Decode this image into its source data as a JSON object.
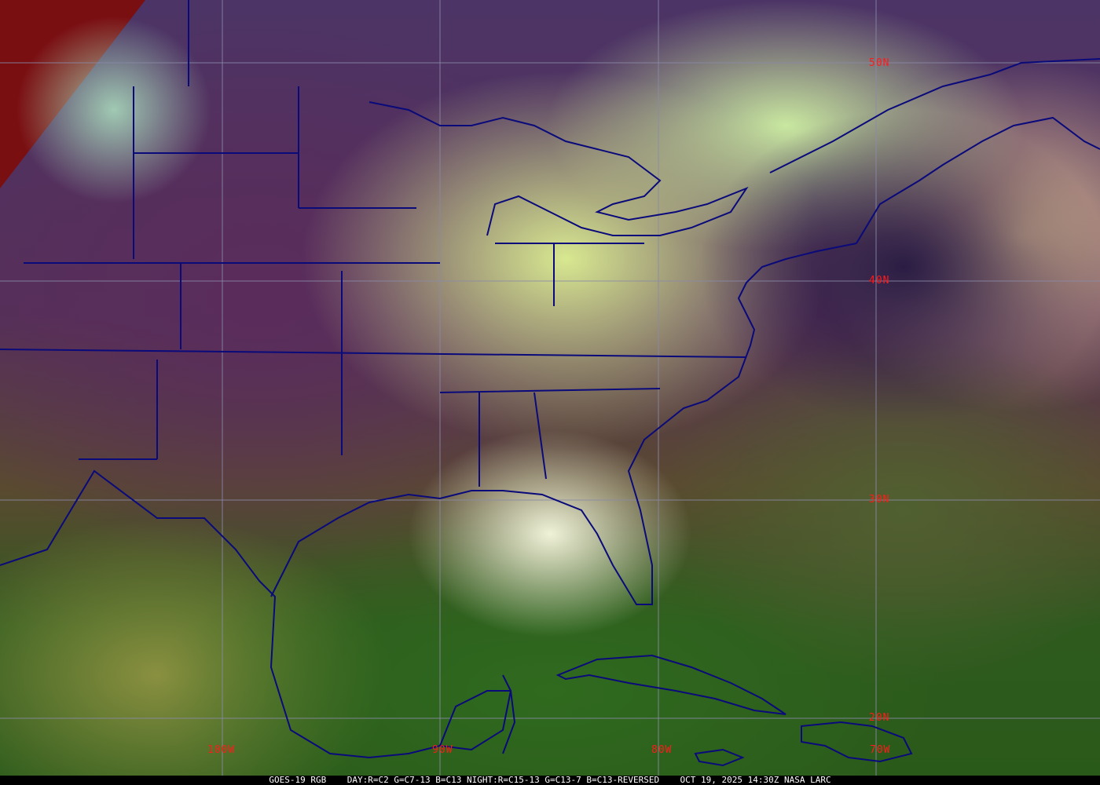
{
  "image": {
    "caption": "GOES-19 RGB    DAY:R=C2 G=C7-13 B=C13 NIGHT:R=C15-13 G=C13-7 B=C13-REVERSED    OCT 19, 2025 14:30Z NASA LARC",
    "latitude_labels": [
      "50N",
      "40N",
      "30N",
      "20N"
    ],
    "longitude_labels": [
      "100W",
      "90W",
      "80W",
      "70W"
    ],
    "colors": {
      "label": "#ff1a1a",
      "boundaries": "#0a0a7a",
      "grid": "#8a8aa8"
    }
  }
}
